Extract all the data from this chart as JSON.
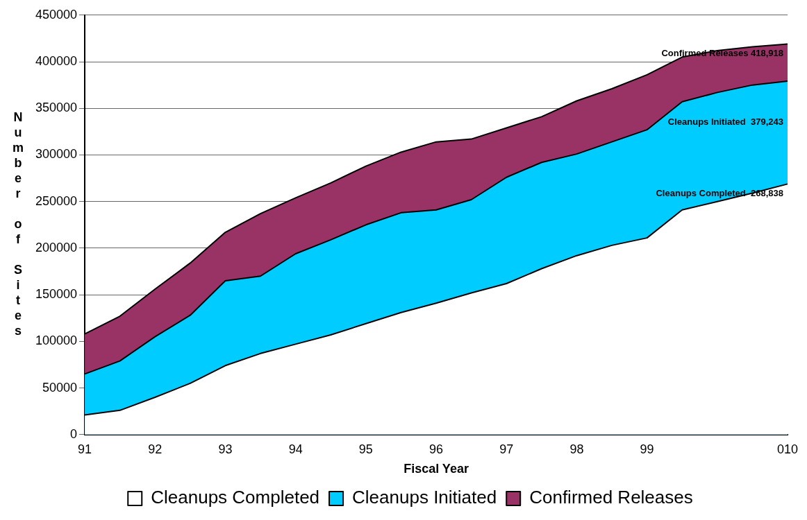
{
  "chart_data": {
    "type": "area",
    "xlabel": "Fiscal Year",
    "ylabel": "Number of Sites",
    "categories": [
      "91",
      null,
      "92",
      null,
      "93",
      null,
      "94",
      null,
      "95",
      null,
      "96",
      null,
      "97",
      null,
      "98",
      null,
      "99",
      null,
      null,
      null,
      "010"
    ],
    "series": [
      {
        "name": "Cleanups Completed",
        "color": "#ffffff",
        "values": [
          21000,
          26000,
          40000,
          55000,
          74000,
          87000,
          97000,
          107000,
          119000,
          131000,
          141000,
          152000,
          162000,
          178000,
          192000,
          203000,
          211000,
          241000,
          250000,
          259000,
          268838
        ]
      },
      {
        "name": "Cleanups Initiated",
        "color": "#00ccff",
        "values": [
          65000,
          79000,
          105000,
          128000,
          165000,
          170000,
          194000,
          209000,
          225000,
          238000,
          241000,
          252000,
          276000,
          292000,
          301000,
          314000,
          327000,
          357000,
          367000,
          375000,
          379243
        ]
      },
      {
        "name": "Confirmed Releases",
        "color": "#993366",
        "values": [
          108000,
          127000,
          156000,
          184000,
          217000,
          237000,
          254000,
          270000,
          288000,
          303000,
          314000,
          317000,
          329000,
          341000,
          358000,
          371000,
          386000,
          405000,
          412000,
          416000,
          418918
        ]
      }
    ],
    "annotations": [
      "Confirmed Releases 418,918",
      "Cleanups Initiated  379,243",
      "Cleanups Completed  268,838"
    ],
    "ylim": [
      0,
      450000
    ],
    "yticks": [
      0,
      50000,
      100000,
      150000,
      200000,
      250000,
      300000,
      350000,
      400000,
      450000
    ],
    "grid": "y",
    "legend": "bottom"
  }
}
